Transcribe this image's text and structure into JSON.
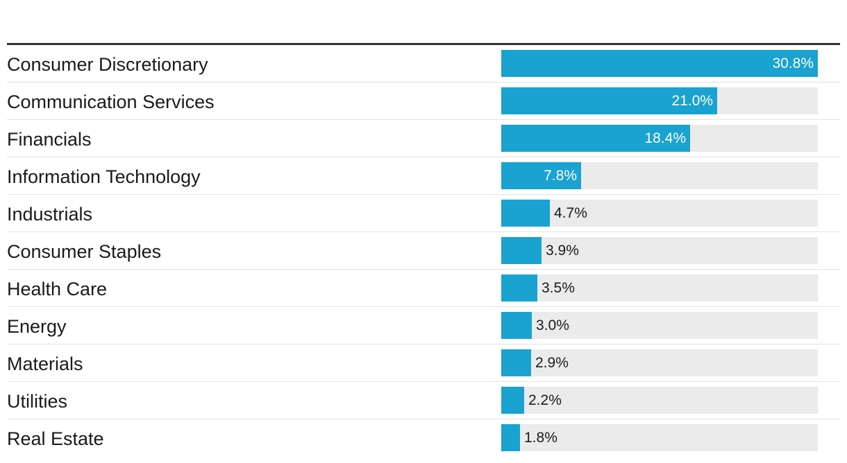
{
  "colors": {
    "bar": "#1aa2d0",
    "track": "#ebebeb",
    "rule": "#333333"
  },
  "chart_data": {
    "type": "bar",
    "orientation": "horizontal",
    "categories": [
      "Consumer Discretionary",
      "Communication Services",
      "Financials",
      "Information Technology",
      "Industrials",
      "Consumer Staples",
      "Health Care",
      "Energy",
      "Materials",
      "Utilities",
      "Real Estate"
    ],
    "values": [
      30.8,
      21.0,
      18.4,
      7.8,
      4.7,
      3.9,
      3.5,
      3.0,
      2.9,
      2.2,
      1.8
    ],
    "value_labels": [
      "30.8%",
      "21.0%",
      "18.4%",
      "7.8%",
      "4.7%",
      "3.9%",
      "3.5%",
      "3.0%",
      "2.9%",
      "2.2%",
      "1.8%"
    ],
    "xlim": [
      0,
      30.8
    ],
    "unit": "%",
    "grid": false,
    "legend": "none"
  }
}
